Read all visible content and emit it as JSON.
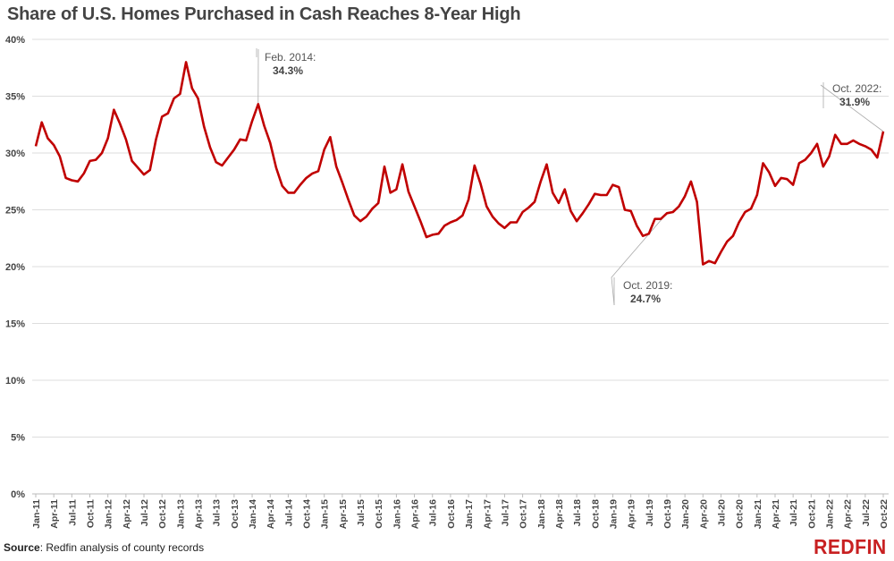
{
  "chart_data": {
    "type": "line",
    "title": "Share of U.S. Homes Purchased in Cash Reaches 8-Year High",
    "xlabel": "",
    "ylabel": "",
    "ylim": [
      0,
      40
    ],
    "y_ticks": [
      "0%",
      "5%",
      "10%",
      "15%",
      "20%",
      "25%",
      "30%",
      "35%",
      "40%"
    ],
    "grid": true,
    "line_color": "#c00000",
    "x_ticks": [
      "Jan-11",
      "Apr-11",
      "Jul-11",
      "Oct-11",
      "Jan-12",
      "Apr-12",
      "Jul-12",
      "Oct-12",
      "Jan-13",
      "Apr-13",
      "Jul-13",
      "Oct-13",
      "Jan-14",
      "Apr-14",
      "Jul-14",
      "Oct-14",
      "Jan-15",
      "Apr-15",
      "Jul-15",
      "Oct-15",
      "Jan-16",
      "Apr-16",
      "Jul-16",
      "Oct-16",
      "Jan-17",
      "Apr-17",
      "Jul-17",
      "Oct-17",
      "Jan-18",
      "Apr-18",
      "Jul-18",
      "Oct-18",
      "Jan-19",
      "Apr-19",
      "Jul-19",
      "Oct-19",
      "Jan-20",
      "Apr-20",
      "Jul-20",
      "Oct-20",
      "Jan-21",
      "Apr-21",
      "Jul-21",
      "Oct-21",
      "Jan-22",
      "Apr-22",
      "Jul-22",
      "Oct-22"
    ],
    "values": [
      30.6,
      32.7,
      31.3,
      30.7,
      29.7,
      27.8,
      27.6,
      27.5,
      28.2,
      29.3,
      29.4,
      30.0,
      31.3,
      33.8,
      32.6,
      31.2,
      29.3,
      28.7,
      28.1,
      28.5,
      31.2,
      33.2,
      33.5,
      34.8,
      35.2,
      38.0,
      35.7,
      34.8,
      32.3,
      30.5,
      29.2,
      28.9,
      29.6,
      30.3,
      31.2,
      31.1,
      32.8,
      34.3,
      32.4,
      30.9,
      28.7,
      27.1,
      26.5,
      26.5,
      27.2,
      27.8,
      28.2,
      28.4,
      30.3,
      31.4,
      28.8,
      27.4,
      25.9,
      24.5,
      24.0,
      24.4,
      25.1,
      25.6,
      28.8,
      26.5,
      26.8,
      29.0,
      26.6,
      25.3,
      24.0,
      22.6,
      22.8,
      22.9,
      23.6,
      23.9,
      24.1,
      24.5,
      25.9,
      28.9,
      27.3,
      25.3,
      24.4,
      23.8,
      23.4,
      23.9,
      23.9,
      24.8,
      25.2,
      25.7,
      27.5,
      29.0,
      26.5,
      25.6,
      26.8,
      24.9,
      24.0,
      24.7,
      25.5,
      26.4,
      26.3,
      26.3,
      27.2,
      27.0,
      25.0,
      24.9,
      23.6,
      22.7,
      22.9,
      24.2,
      24.2,
      24.7,
      24.8,
      25.3,
      26.2,
      27.5,
      25.7,
      20.2,
      20.5,
      20.3,
      21.3,
      22.2,
      22.7,
      23.9,
      24.8,
      25.1,
      26.3,
      29.1,
      28.3,
      27.1,
      27.8,
      27.7,
      27.2,
      29.1,
      29.4,
      30.0,
      30.8,
      28.8,
      29.7,
      31.6,
      30.8,
      30.8,
      31.1,
      30.8,
      30.6,
      30.3,
      29.6,
      31.9
    ],
    "annotations": [
      {
        "label": "Feb. 2014:",
        "value": "34.3%"
      },
      {
        "label": "Oct. 2019:",
        "value": "24.7%"
      },
      {
        "label": "Oct. 2022:",
        "value": "31.9%"
      }
    ]
  },
  "source": {
    "label": "Source",
    "text": ": Redfin analysis of county records"
  },
  "logo": "REDFIN"
}
